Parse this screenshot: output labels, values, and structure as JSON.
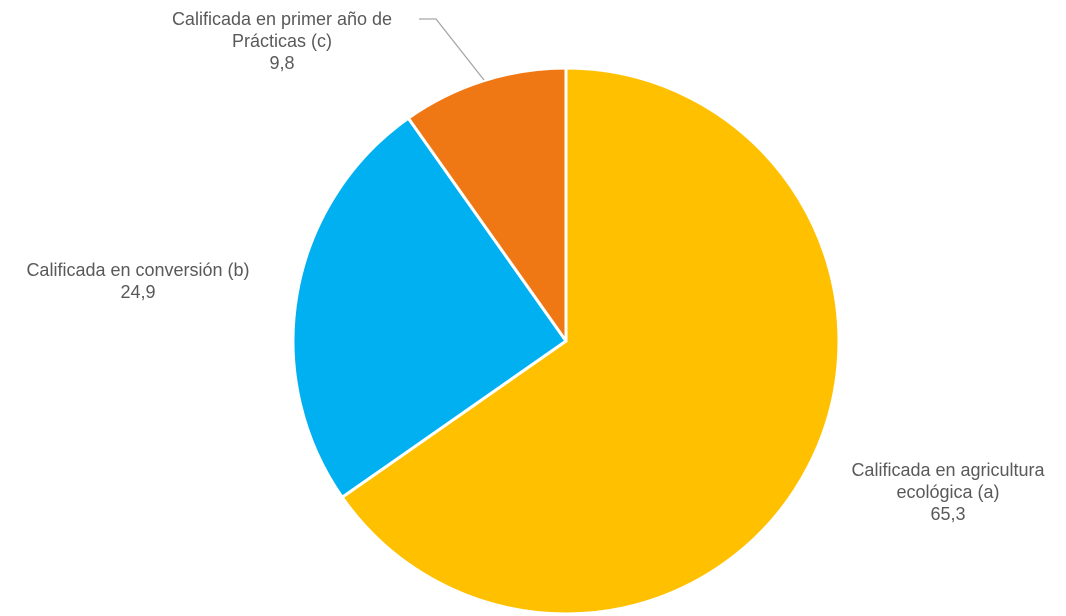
{
  "chart_data": {
    "type": "pie",
    "title": "",
    "start_angle_deg": 0,
    "direction": "clockwise",
    "slices": [
      {
        "label_lines": [
          "Calificada en agricultura",
          "ecológica (a)"
        ],
        "value": 65.3,
        "value_label": "65,3",
        "color": "#FFC000"
      },
      {
        "label_lines": [
          "Calificada en conversión (b)"
        ],
        "value": 24.9,
        "value_label": "24,9",
        "color": "#00B0F0"
      },
      {
        "label_lines": [
          "Calificada en primer año de",
          "Prácticas (c)"
        ],
        "value": 9.8,
        "value_label": "9,8",
        "color": "#F07814"
      }
    ],
    "legend": "none",
    "data_labels": "outside-with-category"
  }
}
